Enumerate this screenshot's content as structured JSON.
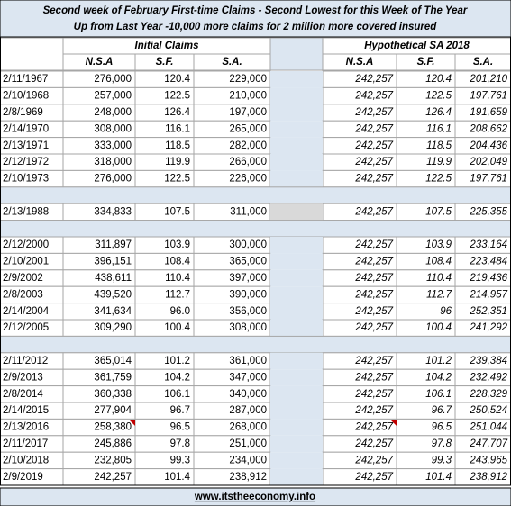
{
  "header": {
    "title": [
      "Second week of February First-time Claims - Second Lowest for this Week of The Year",
      "Up from Last Year -10,000 more claims for 2 million more covered insured"
    ],
    "left_group": "Initial Claims",
    "right_group": "Hypothetical SA 2018",
    "columns": [
      "N.S.A",
      "S.F.",
      "S.A.",
      "N.S.A",
      "S.F.",
      "S.A."
    ]
  },
  "table": {
    "groups": [
      {
        "rows": [
          [
            "2/11/1967",
            "276,000",
            "120.4",
            "229,000",
            "242,257",
            "120.4",
            {
              "text": "201,210",
              "color": "#ff0000"
            }
          ],
          [
            "2/10/1968",
            "257,000",
            "122.5",
            "210,000",
            "242,257",
            "122.5",
            {
              "text": "197,761",
              "color": "#ff0000"
            }
          ],
          [
            "2/8/1969",
            "248,000",
            "126.4",
            "197,000",
            "242,257",
            "126.4",
            {
              "text": "191,659",
              "color": "#ff0000"
            }
          ],
          [
            "2/14/1970",
            "308,000",
            "116.1",
            "265,000",
            "242,257",
            "116.1",
            {
              "text": "208,662",
              "color": "#ff0000"
            }
          ],
          [
            "2/13/1971",
            "333,000",
            "118.5",
            "282,000",
            "242,257",
            "118.5",
            {
              "text": "204,436",
              "color": "#ff0000"
            }
          ],
          [
            "2/12/1972",
            "318,000",
            "119.9",
            "266,000",
            "242,257",
            "119.9",
            {
              "text": "202,049",
              "color": "#ff0000"
            }
          ],
          [
            "2/10/1973",
            "276,000",
            "122.5",
            "226,000",
            "242,257",
            "122.5",
            {
              "text": "197,761",
              "color": "#ff0000"
            }
          ]
        ]
      },
      {
        "rows": [
          [
            "2/13/1988",
            "334,833",
            "107.5",
            "311,000",
            "242,257",
            "107.5",
            {
              "text": "225,355",
              "color": "#ff0000"
            }
          ]
        ]
      },
      {
        "rows": [
          [
            "2/12/2000",
            "311,897",
            "103.9",
            "300,000",
            "242,257",
            "103.9",
            {
              "text": "233,164",
              "color": "#ff0000"
            }
          ],
          [
            "2/10/2001",
            "396,151",
            "108.4",
            "365,000",
            "242,257",
            "108.4",
            {
              "text": "223,484",
              "color": "#ff0000"
            }
          ],
          [
            "2/9/2002",
            "438,611",
            "110.4",
            "397,000",
            "242,257",
            "110.4",
            {
              "text": "219,436",
              "color": "#ff0000"
            }
          ],
          [
            "2/8/2003",
            "439,520",
            "112.7",
            "390,000",
            "242,257",
            "112.7",
            {
              "text": "214,957",
              "color": "#ff0000"
            }
          ],
          [
            "2/14/2004",
            "341,634",
            "96.0",
            "356,000",
            "242,257",
            "96",
            "252,351"
          ],
          [
            "2/12/2005",
            "309,290",
            "100.4",
            "308,000",
            "242,257",
            "100.4",
            "241,292"
          ]
        ]
      },
      {
        "rows": [
          [
            "2/11/2012",
            "365,014",
            "101.2",
            "361,000",
            "242,257",
            "101.2",
            "239,384"
          ],
          [
            "2/9/2013",
            "361,759",
            "104.2",
            "347,000",
            "242,257",
            "104.2",
            {
              "text": "232,492",
              "color": "#ff0000"
            }
          ],
          [
            "2/8/2014",
            "360,338",
            "106.1",
            "340,000",
            "242,257",
            "106.1",
            {
              "text": "228,329",
              "color": "#ff0000"
            }
          ],
          [
            "2/14/2015",
            "277,904",
            "96.7",
            "287,000",
            "242,257",
            "96.7",
            "250,524"
          ],
          [
            "2/13/2016",
            "258,380",
            "96.5",
            "268,000",
            "242,257",
            "96.5",
            "251,044"
          ],
          [
            "2/11/2017",
            "245,886",
            "97.8",
            "251,000",
            "242,257",
            "97.8",
            "247,707"
          ],
          [
            "2/10/2018",
            {
              "text": "232,805",
              "color": "#ff0000"
            },
            "99.3",
            "234,000",
            "242,257",
            "99.3",
            "243,965"
          ],
          [
            "2/9/2019",
            "242,257",
            "101.4",
            "238,912",
            "242,257",
            "101.4",
            "238,912"
          ]
        ]
      }
    ]
  },
  "footer": "www.itstheeconomy.info"
}
